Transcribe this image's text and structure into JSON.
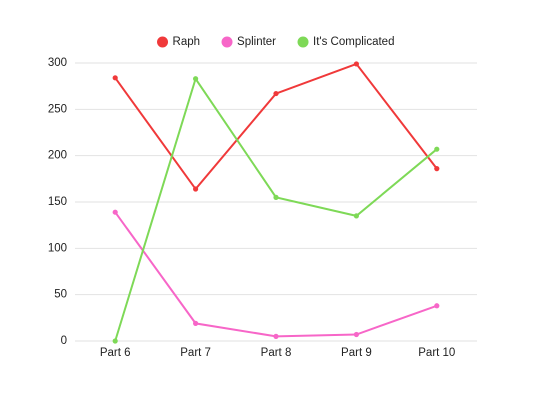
{
  "chart_data": {
    "type": "line",
    "categories": [
      "Part 6",
      "Part 7",
      "Part 8",
      "Part 9",
      "Part 10"
    ],
    "series": [
      {
        "name": "Raph",
        "color": "#f0393a",
        "values": [
          284,
          164,
          267,
          299,
          186
        ]
      },
      {
        "name": "Splinter",
        "color": "#f766c8",
        "values": [
          139,
          19,
          5,
          7,
          38
        ]
      },
      {
        "name": "It's Complicated",
        "color": "#7ed957",
        "values": [
          0,
          283,
          155,
          135,
          207
        ]
      }
    ],
    "ylim": [
      0,
      300
    ],
    "yticks": [
      0,
      50,
      100,
      150,
      200,
      250,
      300
    ],
    "grid": true,
    "legend": "top"
  }
}
